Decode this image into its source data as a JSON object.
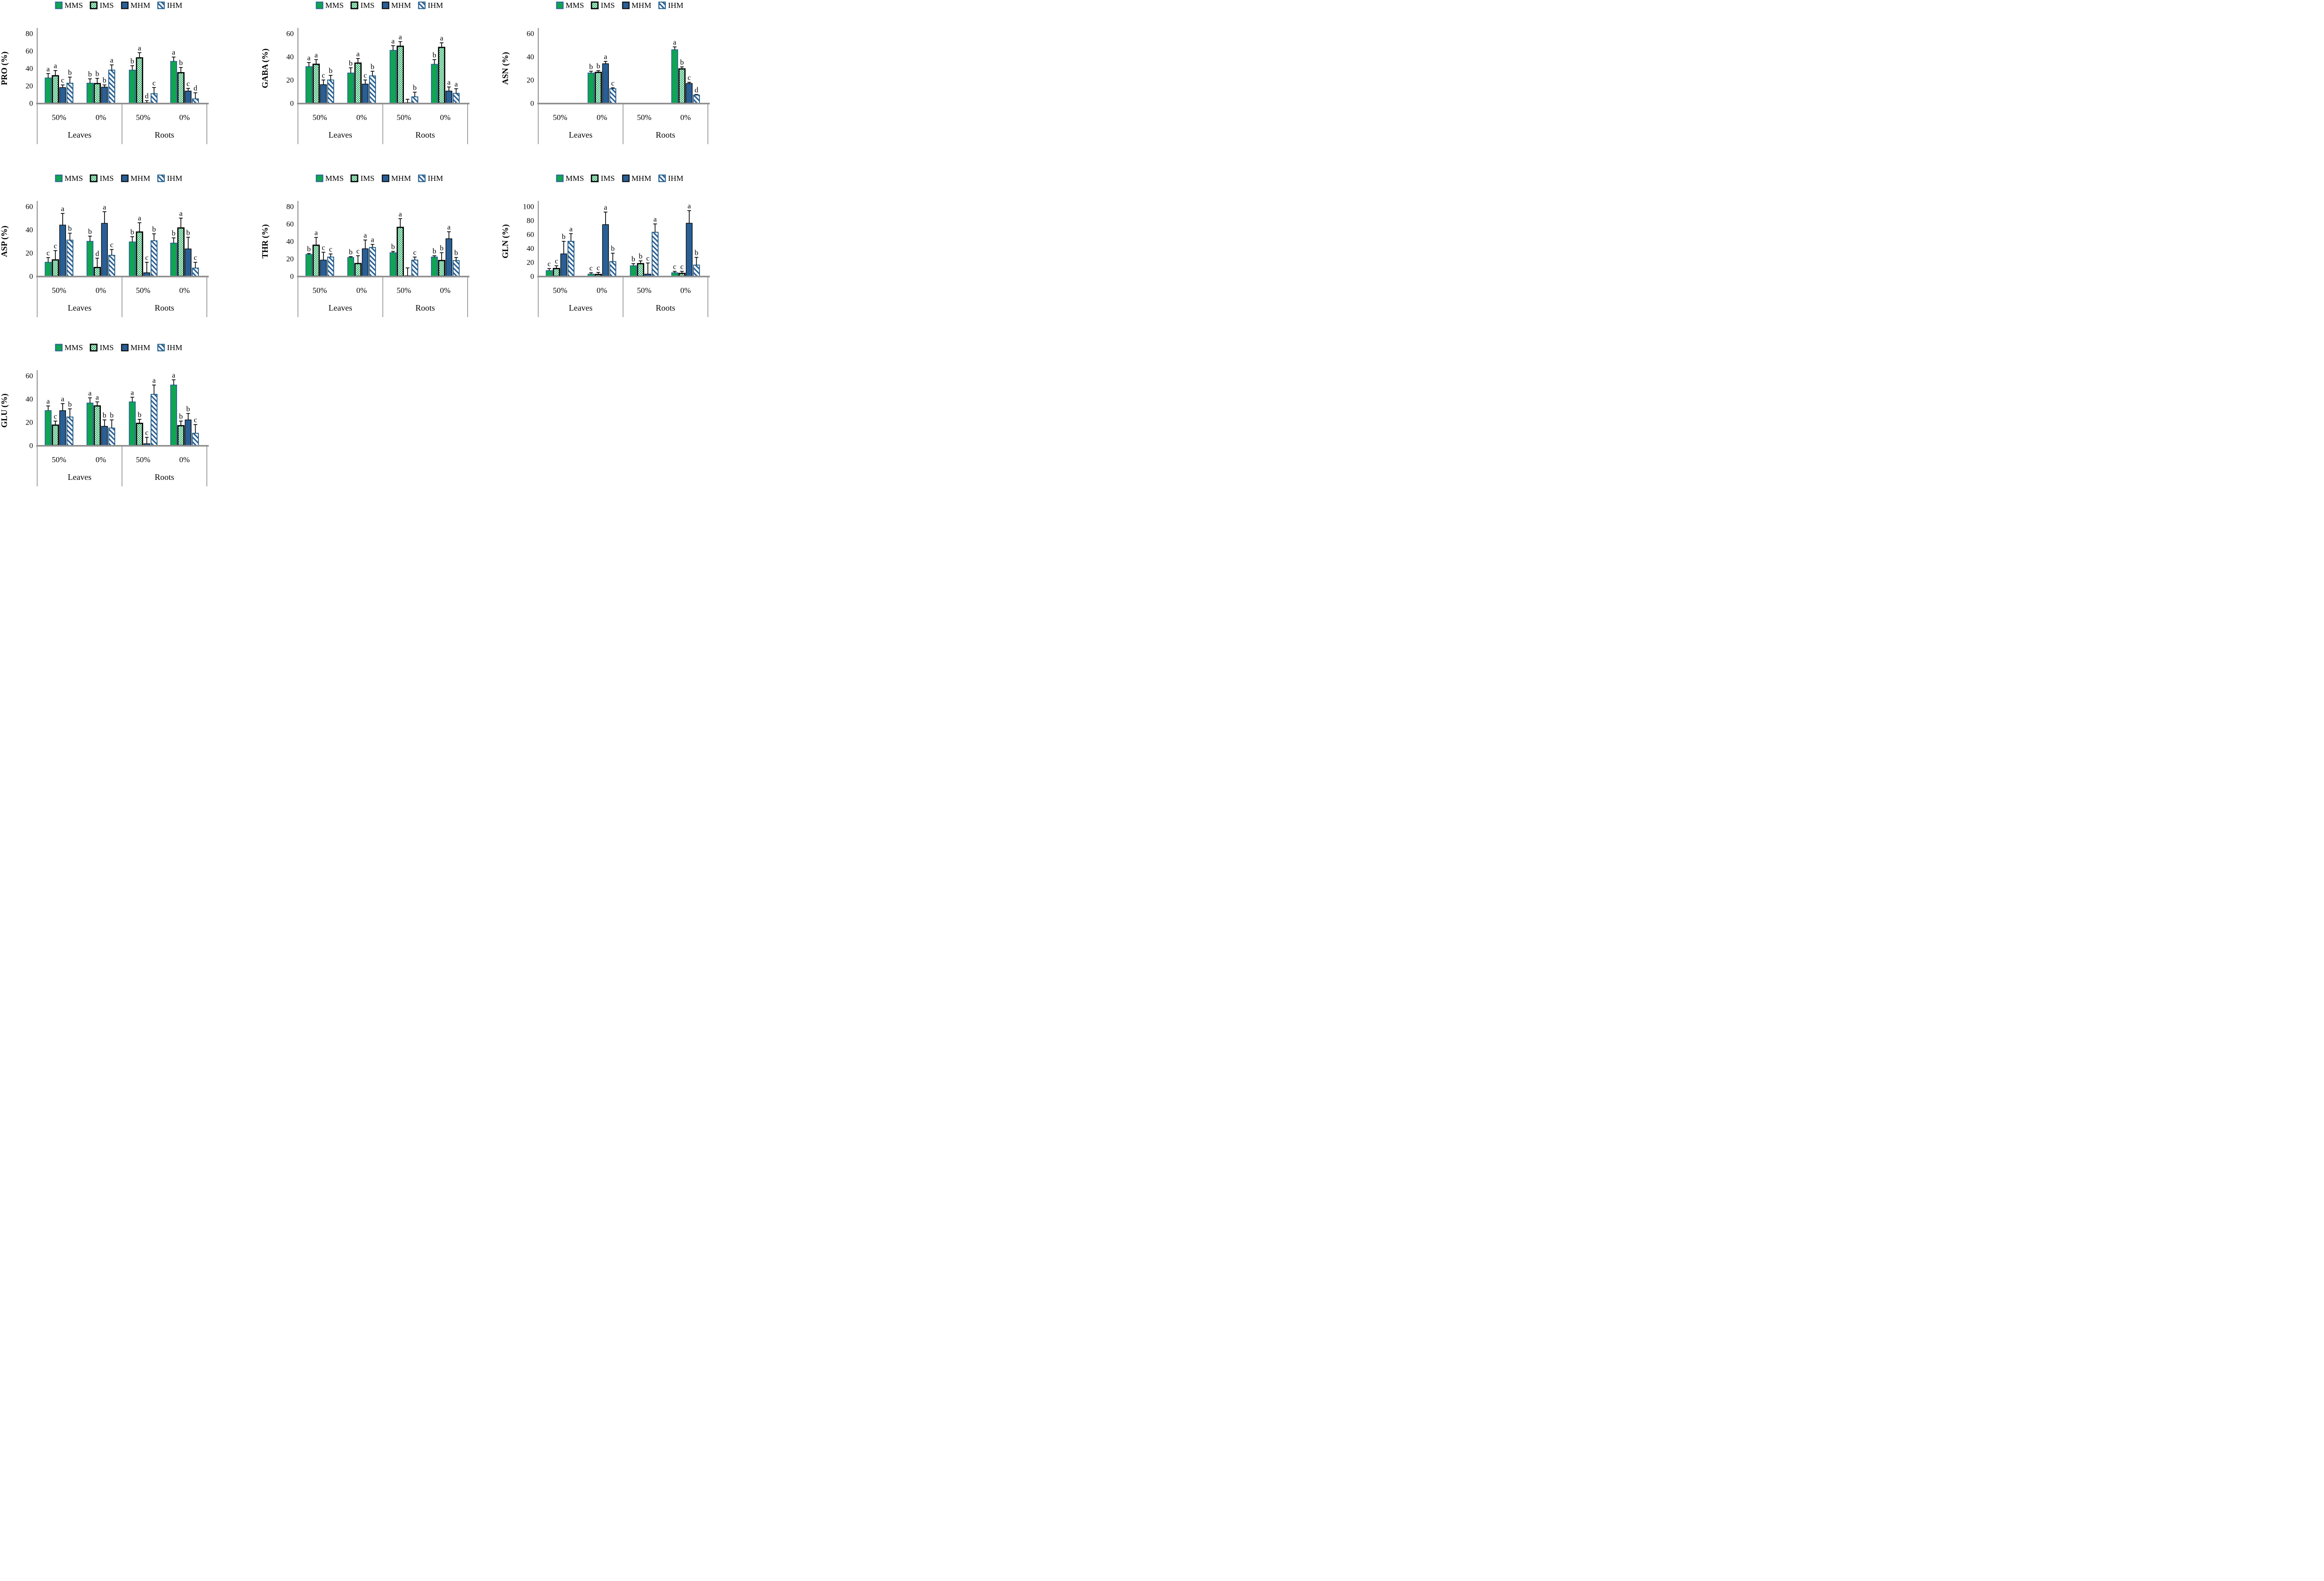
{
  "figure": {
    "background": "#FFFFFF",
    "name": "amino-acid-percentage-bar-charts"
  },
  "colors": {
    "green": "#0FA553",
    "steel_blue": "#2A5F95",
    "ihm_border": "#1F5E88",
    "black": "#000000",
    "axis_gray": "#8F8F8F",
    "table_gray": "#9C9C9C",
    "text": "#000000",
    "pattern_bg": "#FFFFFF"
  },
  "legend": {
    "items": [
      {
        "label": "MMS",
        "style": "solid-green"
      },
      {
        "label": "IMS",
        "style": "green-checker"
      },
      {
        "label": "MHM",
        "style": "solid-blue"
      },
      {
        "label": "IHM",
        "style": "blue-stripe"
      }
    ]
  },
  "axis_labels": {
    "irrigation": [
      "50%",
      "0%"
    ],
    "tissues": [
      "Leaves",
      "Roots"
    ]
  },
  "chart_data": [
    {
      "id": "pro",
      "type": "bar",
      "ylabel": "PRO (%)",
      "ylim": [
        0,
        80
      ],
      "yticks": [
        0,
        20,
        40,
        60,
        80
      ],
      "series_names": [
        "MMS",
        "IMS",
        "MHM",
        "IHM"
      ],
      "clusters": [
        {
          "tissue": "Leaves",
          "irrigation": "50%",
          "values": [
            29,
            31.5,
            18,
            23
          ],
          "errors": [
            5,
            6,
            3,
            7
          ],
          "letters": [
            "a",
            "a",
            "c",
            "b"
          ]
        },
        {
          "tissue": "Leaves",
          "irrigation": "0%",
          "values": [
            23,
            22.5,
            18.5,
            38
          ],
          "errors": [
            5,
            6,
            2.5,
            6
          ],
          "letters": [
            "b",
            "b",
            "b",
            "a"
          ]
        },
        {
          "tissue": "Roots",
          "irrigation": "50%",
          "values": [
            38,
            52,
            0.5,
            11
          ],
          "errors": [
            5,
            6,
            2.5,
            7
          ],
          "letters": [
            "b",
            "a",
            "d",
            "c"
          ]
        },
        {
          "tissue": "Roots",
          "irrigation": "0%",
          "values": [
            48,
            35,
            14,
            5
          ],
          "errors": [
            5,
            6,
            3,
            7
          ],
          "letters": [
            "a",
            "b",
            "c",
            "d"
          ]
        }
      ]
    },
    {
      "id": "gaba",
      "type": "bar",
      "ylabel": "GABA (%)",
      "ylim": [
        0,
        60
      ],
      "yticks": [
        0,
        20,
        40,
        60
      ],
      "series_names": [
        "MMS",
        "IMS",
        "MHM",
        "IHM"
      ],
      "clusters": [
        {
          "tissue": "Leaves",
          "irrigation": "50%",
          "values": [
            31.5,
            33.5,
            16,
            20
          ],
          "errors": [
            3.5,
            4,
            4,
            4
          ],
          "letters": [
            "a",
            "a",
            "c",
            "b"
          ]
        },
        {
          "tissue": "Leaves",
          "irrigation": "0%",
          "values": [
            26,
            34.5,
            16.5,
            23.5
          ],
          "errors": [
            4.5,
            4,
            3.5,
            4
          ],
          "letters": [
            "b",
            "a",
            "c",
            "b"
          ]
        },
        {
          "tissue": "Roots",
          "irrigation": "50%",
          "values": [
            45.5,
            49,
            0.4,
            5.5
          ],
          "errors": [
            4,
            4,
            3,
            4
          ],
          "letters": [
            "a",
            "a",
            "",
            "b"
          ]
        },
        {
          "tissue": "Roots",
          "irrigation": "0%",
          "values": [
            33.5,
            48,
            10.5,
            8.5
          ],
          "errors": [
            4,
            4,
            3.5,
            4
          ],
          "letters": [
            "b",
            "a",
            "a",
            "a"
          ]
        }
      ]
    },
    {
      "id": "asn",
      "type": "bar",
      "ylabel": "ASN (%)",
      "ylim": [
        0,
        60
      ],
      "yticks": [
        0,
        20,
        40,
        60
      ],
      "series_names": [
        "MMS",
        "IMS",
        "MHM",
        "IHM"
      ],
      "clusters": [
        {
          "tissue": "Leaves",
          "irrigation": "50%",
          "values": [
            0,
            0,
            0,
            0
          ],
          "errors": [
            0,
            0,
            0,
            0
          ],
          "letters": [
            "",
            "",
            "",
            ""
          ]
        },
        {
          "tissue": "Leaves",
          "irrigation": "0%",
          "values": [
            26,
            26.5,
            34,
            12.5
          ],
          "errors": [
            1.5,
            1.5,
            2,
            0.8
          ],
          "letters": [
            "b",
            "b",
            "a",
            "c"
          ]
        },
        {
          "tissue": "Roots",
          "irrigation": "50%",
          "values": [
            0,
            0,
            0,
            0
          ],
          "errors": [
            0,
            0,
            0,
            0
          ],
          "letters": [
            "",
            "",
            "",
            ""
          ]
        },
        {
          "tissue": "Roots",
          "irrigation": "0%",
          "values": [
            46,
            29.5,
            17,
            7
          ],
          "errors": [
            2.5,
            1.8,
            1,
            0.5
          ],
          "letters": [
            "a",
            "b",
            "c",
            "d"
          ]
        }
      ]
    },
    {
      "id": "asp",
      "type": "bar",
      "ylabel": "ASP (%)",
      "ylim": [
        0,
        60
      ],
      "yticks": [
        0,
        20,
        40,
        60
      ],
      "series_names": [
        "MMS",
        "IMS",
        "MHM",
        "IHM"
      ],
      "clusters": [
        {
          "tissue": "Leaves",
          "irrigation": "50%",
          "values": [
            12,
            14,
            44,
            31
          ],
          "errors": [
            4,
            8,
            10,
            6
          ],
          "letters": [
            "c",
            "c",
            "a",
            "b"
          ]
        },
        {
          "tissue": "Leaves",
          "irrigation": "0%",
          "values": [
            30,
            7.5,
            45.5,
            18
          ],
          "errors": [
            4.5,
            8,
            10,
            5
          ],
          "letters": [
            "b",
            "d",
            "a",
            "c"
          ]
        },
        {
          "tissue": "Roots",
          "irrigation": "50%",
          "values": [
            29.5,
            38,
            3,
            30.5
          ],
          "errors": [
            4.5,
            8,
            9,
            6
          ],
          "letters": [
            "b",
            "a",
            "c",
            "b"
          ]
        },
        {
          "tissue": "Roots",
          "irrigation": "0%",
          "values": [
            28.5,
            41.5,
            23.5,
            7
          ],
          "errors": [
            4.5,
            8.5,
            10,
            5
          ],
          "letters": [
            "b",
            "a",
            "b",
            "c"
          ]
        }
      ]
    },
    {
      "id": "thr",
      "type": "bar",
      "ylabel": "THR (%)",
      "ylim": [
        0,
        80
      ],
      "yticks": [
        0,
        20,
        40,
        60,
        80
      ],
      "series_names": [
        "MMS",
        "IMS",
        "MHM",
        "IHM"
      ],
      "clusters": [
        {
          "tissue": "Leaves",
          "irrigation": "50%",
          "values": [
            25,
            35.5,
            18.5,
            22
          ],
          "errors": [
            1,
            9,
            9,
            3.5
          ],
          "letters": [
            "b",
            "a",
            "c",
            "c"
          ]
        },
        {
          "tissue": "Leaves",
          "irrigation": "0%",
          "values": [
            21.5,
            14.5,
            31.5,
            33
          ],
          "errors": [
            1,
            9,
            10,
            3.5
          ],
          "letters": [
            "b",
            "c",
            "a",
            "a"
          ]
        },
        {
          "tissue": "Roots",
          "irrigation": "50%",
          "values": [
            27,
            56,
            0.5,
            18.5
          ],
          "errors": [
            1.5,
            10,
            9,
            3.5
          ],
          "letters": [
            "b",
            "a",
            "",
            "c"
          ]
        },
        {
          "tissue": "Roots",
          "irrigation": "0%",
          "values": [
            22,
            18,
            43,
            18
          ],
          "errors": [
            1.5,
            9,
            8,
            3.5
          ],
          "letters": [
            "b",
            "b",
            "a",
            "b"
          ]
        }
      ]
    },
    {
      "id": "gln",
      "type": "bar",
      "ylabel": "GLN (%)",
      "ylim": [
        0,
        100
      ],
      "yticks": [
        0,
        20,
        40,
        60,
        80,
        100
      ],
      "series_names": [
        "MMS",
        "IMS",
        "MHM",
        "IHM"
      ],
      "clusters": [
        {
          "tissue": "Leaves",
          "irrigation": "50%",
          "values": [
            8,
            11,
            32,
            50
          ],
          "errors": [
            3,
            4,
            18,
            11
          ],
          "letters": [
            "c",
            "c",
            "b",
            "a"
          ]
        },
        {
          "tissue": "Leaves",
          "irrigation": "0%",
          "values": [
            3,
            2.5,
            74,
            21
          ],
          "errors": [
            2,
            3,
            18,
            12
          ],
          "letters": [
            "c",
            "c",
            "a",
            "b"
          ]
        },
        {
          "tissue": "Roots",
          "irrigation": "50%",
          "values": [
            15,
            18,
            3,
            63
          ],
          "errors": [
            3,
            4,
            16,
            12
          ],
          "letters": [
            "b",
            "b",
            "c",
            "a"
          ]
        },
        {
          "tissue": "Roots",
          "irrigation": "0%",
          "values": [
            5,
            4,
            76,
            16
          ],
          "errors": [
            2,
            3,
            18,
            11
          ],
          "letters": [
            "c",
            "c",
            "a",
            "b"
          ]
        }
      ]
    },
    {
      "id": "glu",
      "type": "bar",
      "ylabel": "GLU (%)",
      "ylim": [
        0,
        60
      ],
      "yticks": [
        0,
        20,
        40,
        60
      ],
      "series_names": [
        "MMS",
        "IMS",
        "MHM",
        "IHM"
      ],
      "clusters": [
        {
          "tissue": "Leaves",
          "irrigation": "50%",
          "values": [
            30,
            17.5,
            30,
            24.5
          ],
          "errors": [
            4,
            3.5,
            6,
            7
          ],
          "letters": [
            "a",
            "c",
            "a",
            "b"
          ]
        },
        {
          "tissue": "Leaves",
          "irrigation": "0%",
          "values": [
            36.5,
            34,
            16.5,
            15
          ],
          "errors": [
            4.5,
            3.5,
            5.5,
            7
          ],
          "letters": [
            "a",
            "a",
            "b",
            "b"
          ]
        },
        {
          "tissue": "Roots",
          "irrigation": "50%",
          "values": [
            37.5,
            19,
            1.5,
            44
          ],
          "errors": [
            4,
            3.5,
            5.5,
            8
          ],
          "letters": [
            "a",
            "b",
            "c",
            "a"
          ]
        },
        {
          "tissue": "Roots",
          "irrigation": "0%",
          "values": [
            52,
            17,
            22,
            10.5
          ],
          "errors": [
            4.5,
            4,
            5.5,
            7.5
          ],
          "letters": [
            "a",
            "b",
            "b",
            "c"
          ]
        }
      ]
    }
  ]
}
